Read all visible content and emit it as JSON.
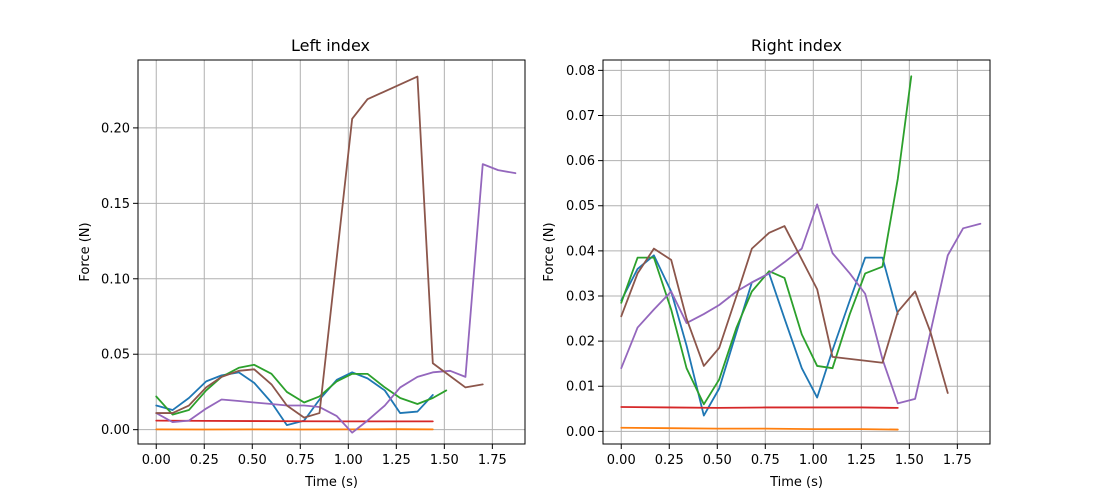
{
  "chart_data": [
    {
      "type": "line",
      "title": "Left index",
      "xlabel": "Time (s)",
      "ylabel": "Force (N)",
      "xlim": [
        -0.095,
        1.92
      ],
      "ylim": [
        -0.0095,
        0.245
      ],
      "xticks": [
        0,
        0.25,
        0.5,
        0.75,
        1.0,
        1.25,
        1.5,
        1.75
      ],
      "xtick_labels": [
        "0.00",
        "0.25",
        "0.50",
        "0.75",
        "1.00",
        "1.25",
        "1.50",
        "1.75"
      ],
      "yticks": [
        0,
        0.05,
        0.1,
        0.15,
        0.2
      ],
      "ytick_labels": [
        "0.00",
        "0.05",
        "0.10",
        "0.15",
        "0.20"
      ],
      "grid": true,
      "series": [
        {
          "color": "#1f77b4",
          "x": [
            0,
            0.085,
            0.17,
            0.26,
            0.34,
            0.43,
            0.51,
            0.6,
            0.68,
            0.77,
            0.85,
            0.94,
            1.02,
            1.1,
            1.19,
            1.27,
            1.36,
            1.44
          ],
          "y": [
            0.016,
            0.013,
            0.021,
            0.032,
            0.036,
            0.038,
            0.031,
            0.018,
            0.003,
            0.006,
            0.02,
            0.033,
            0.038,
            0.034,
            0.026,
            0.011,
            0.012,
            0.023
          ]
        },
        {
          "color": "#ff7f0e",
          "x": [
            0,
            0.25,
            0.5,
            0.75,
            1.0,
            1.25,
            1.44
          ],
          "y": [
            0.0002,
            0.0001,
            0.0002,
            0.0001,
            0.0002,
            0.0003,
            0.0002
          ]
        },
        {
          "color": "#2ca02c",
          "x": [
            0,
            0.085,
            0.17,
            0.26,
            0.34,
            0.43,
            0.51,
            0.6,
            0.68,
            0.77,
            0.85,
            0.94,
            1.02,
            1.1,
            1.19,
            1.27,
            1.36,
            1.44,
            1.51
          ],
          "y": [
            0.022,
            0.01,
            0.013,
            0.026,
            0.035,
            0.041,
            0.043,
            0.037,
            0.025,
            0.018,
            0.022,
            0.032,
            0.037,
            0.037,
            0.028,
            0.021,
            0.017,
            0.021,
            0.026
          ]
        },
        {
          "color": "#d62728",
          "x": [
            0,
            0.25,
            0.5,
            0.75,
            1.0,
            1.25,
            1.44
          ],
          "y": [
            0.006,
            0.0058,
            0.0057,
            0.0056,
            0.0055,
            0.0055,
            0.0055
          ]
        },
        {
          "color": "#9467bd",
          "x": [
            0,
            0.085,
            0.17,
            0.26,
            0.34,
            0.43,
            0.51,
            0.6,
            0.68,
            0.77,
            0.85,
            0.94,
            1.02,
            1.1,
            1.19,
            1.27,
            1.36,
            1.44,
            1.53,
            1.61,
            1.7,
            1.78,
            1.87
          ],
          "y": [
            0.011,
            0.005,
            0.006,
            0.014,
            0.02,
            0.019,
            0.018,
            0.017,
            0.016,
            0.016,
            0.015,
            0.009,
            -0.002,
            0.006,
            0.016,
            0.028,
            0.035,
            0.038,
            0.039,
            0.035,
            0.176,
            0.172,
            0.17
          ]
        },
        {
          "color": "#8c564b",
          "x": [
            0,
            0.085,
            0.17,
            0.26,
            0.34,
            0.43,
            0.51,
            0.6,
            0.68,
            0.77,
            0.85,
            1.02,
            1.1,
            1.36,
            1.44,
            1.61,
            1.7
          ],
          "y": [
            0.011,
            0.011,
            0.016,
            0.028,
            0.035,
            0.039,
            0.04,
            0.03,
            0.016,
            0.008,
            0.011,
            0.206,
            0.219,
            0.234,
            0.044,
            0.028,
            0.03
          ]
        }
      ]
    },
    {
      "type": "line",
      "title": "Right index",
      "xlabel": "Time (s)",
      "ylabel": "Force (N)",
      "xlim": [
        -0.095,
        1.92
      ],
      "ylim": [
        -0.0028,
        0.0823
      ],
      "xticks": [
        0,
        0.25,
        0.5,
        0.75,
        1.0,
        1.25,
        1.5,
        1.75
      ],
      "xtick_labels": [
        "0.00",
        "0.25",
        "0.50",
        "0.75",
        "1.00",
        "1.25",
        "1.50",
        "1.75"
      ],
      "yticks": [
        0,
        0.01,
        0.02,
        0.03,
        0.04,
        0.05,
        0.06,
        0.07,
        0.08
      ],
      "ytick_labels": [
        "0.00",
        "0.01",
        "0.02",
        "0.03",
        "0.04",
        "0.05",
        "0.06",
        "0.07",
        "0.08"
      ],
      "grid": true,
      "series": [
        {
          "color": "#1f77b4",
          "x": [
            0,
            0.085,
            0.17,
            0.26,
            0.34,
            0.43,
            0.51,
            0.6,
            0.68,
            0.77,
            0.85,
            0.94,
            1.02,
            1.1,
            1.19,
            1.27,
            1.36,
            1.44
          ],
          "y": [
            0.029,
            0.036,
            0.039,
            0.031,
            0.019,
            0.0035,
            0.0095,
            0.022,
            0.033,
            0.035,
            0.025,
            0.014,
            0.0075,
            0.018,
            0.029,
            0.0385,
            0.0385,
            0.026
          ]
        },
        {
          "color": "#ff7f0e",
          "x": [
            0,
            0.25,
            0.5,
            0.75,
            1.0,
            1.25,
            1.44
          ],
          "y": [
            0.0008,
            0.0007,
            0.0006,
            0.0006,
            0.0005,
            0.0005,
            0.0004
          ]
        },
        {
          "color": "#2ca02c",
          "x": [
            0,
            0.085,
            0.17,
            0.26,
            0.34,
            0.43,
            0.51,
            0.6,
            0.68,
            0.77,
            0.85,
            0.94,
            1.02,
            1.1,
            1.19,
            1.27,
            1.36,
            1.44,
            1.51
          ],
          "y": [
            0.0285,
            0.0385,
            0.0385,
            0.027,
            0.014,
            0.006,
            0.0115,
            0.023,
            0.031,
            0.0355,
            0.034,
            0.0215,
            0.0145,
            0.014,
            0.026,
            0.035,
            0.0365,
            0.056,
            0.0787
          ]
        },
        {
          "color": "#d62728",
          "x": [
            0,
            0.25,
            0.5,
            0.75,
            1.0,
            1.25,
            1.44
          ],
          "y": [
            0.0054,
            0.0053,
            0.0052,
            0.0053,
            0.0053,
            0.0053,
            0.0052
          ]
        },
        {
          "color": "#9467bd",
          "x": [
            0,
            0.085,
            0.17,
            0.26,
            0.34,
            0.43,
            0.51,
            0.6,
            0.68,
            0.77,
            0.85,
            0.94,
            1.02,
            1.1,
            1.19,
            1.27,
            1.36,
            1.44,
            1.53,
            1.61,
            1.7,
            1.78,
            1.87
          ],
          "y": [
            0.014,
            0.023,
            0.027,
            0.031,
            0.024,
            0.026,
            0.028,
            0.031,
            0.033,
            0.035,
            0.0375,
            0.0405,
            0.0503,
            0.0395,
            0.035,
            0.0305,
            0.016,
            0.0062,
            0.0072,
            0.022,
            0.039,
            0.045,
            0.046
          ]
        },
        {
          "color": "#8c564b",
          "x": [
            0,
            0.085,
            0.17,
            0.26,
            0.34,
            0.43,
            0.51,
            0.6,
            0.68,
            0.77,
            0.85,
            1.02,
            1.1,
            1.36,
            1.44,
            1.53,
            1.61,
            1.7
          ],
          "y": [
            0.0255,
            0.035,
            0.0405,
            0.038,
            0.025,
            0.0145,
            0.0185,
            0.03,
            0.0405,
            0.044,
            0.0455,
            0.0315,
            0.0165,
            0.0152,
            0.0265,
            0.031,
            0.022,
            0.0085
          ]
        }
      ]
    }
  ]
}
